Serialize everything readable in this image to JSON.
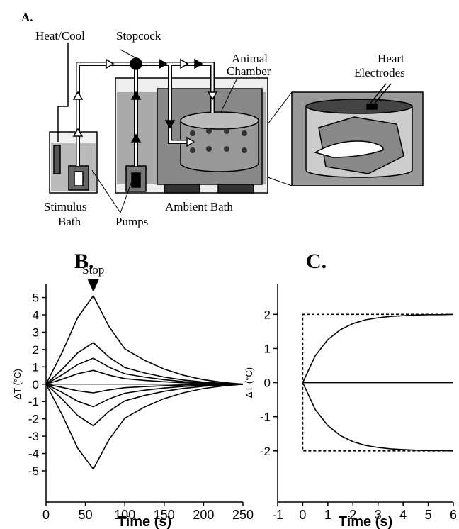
{
  "panel_a": {
    "label": "A.",
    "heat_cool": "Heat/Cool",
    "stopcock": "Stopcock",
    "animal_chamber": [
      "Animal",
      "Chamber"
    ],
    "heart_electrodes": [
      "Heart",
      "Electrodes"
    ],
    "stimulus_bath": [
      "Stimulus",
      "Bath"
    ],
    "pumps": "Pumps",
    "ambient_bath": "Ambient Bath"
  },
  "chart_data": [
    {
      "type": "line",
      "panel_label": "B.",
      "x_label": "Time (s)",
      "y_label": "ΔT (°C)",
      "x": [
        0,
        20,
        40,
        60,
        80,
        100,
        125,
        150,
        175,
        200,
        225,
        250
      ],
      "series": [
        {
          "color": "#000",
          "values": [
            0,
            1.79,
            3.83,
            5.1,
            3.32,
            2.04,
            1.38,
            0.87,
            0.51,
            0.26,
            0.1,
            0
          ]
        },
        {
          "color": "#000",
          "values": [
            0,
            0.84,
            1.8,
            2.4,
            1.56,
            0.96,
            0.65,
            0.41,
            0.24,
            0.12,
            0.05,
            0
          ]
        },
        {
          "color": "#000",
          "values": [
            0,
            0.53,
            1.13,
            1.5,
            0.98,
            0.6,
            0.41,
            0.26,
            0.15,
            0.08,
            0.03,
            0
          ]
        },
        {
          "color": "#000",
          "values": [
            0,
            0.28,
            0.6,
            0.8,
            0.52,
            0.32,
            0.22,
            0.14,
            0.08,
            0.04,
            0.02,
            0
          ]
        },
        {
          "color": "#000",
          "values": [
            0,
            -0.18,
            -0.38,
            -0.5,
            -0.33,
            -0.2,
            -0.14,
            -0.09,
            -0.05,
            -0.03,
            -0.01,
            0
          ]
        },
        {
          "color": "#000",
          "values": [
            0,
            -0.46,
            -0.98,
            -1.3,
            -0.85,
            -0.52,
            -0.35,
            -0.22,
            -0.13,
            -0.07,
            -0.03,
            0
          ]
        },
        {
          "color": "#000",
          "values": [
            0,
            -0.84,
            -1.8,
            -2.4,
            -1.56,
            -0.96,
            -0.65,
            -0.41,
            -0.24,
            -0.12,
            -0.05,
            0
          ]
        },
        {
          "color": "#000",
          "values": [
            0,
            -1.72,
            -3.68,
            -4.9,
            -3.19,
            -1.96,
            -1.32,
            -0.83,
            -0.49,
            -0.25,
            -0.1,
            0
          ]
        }
      ],
      "annotation": {
        "text": "Stop",
        "x": 60
      },
      "zero_line": true,
      "xlim": [
        0,
        250
      ],
      "xticks": [
        0,
        50,
        100,
        150,
        200,
        250
      ],
      "ylim": [
        -6.8,
        5.8
      ],
      "yticks": [
        -5,
        -4,
        -3,
        -2,
        -1,
        0,
        1,
        2,
        3,
        4,
        5
      ]
    },
    {
      "type": "line",
      "panel_label": "C.",
      "x_label": "Time (s)",
      "y_label": "ΔT (°C)",
      "series": [
        {
          "color": "#000",
          "x": [
            0,
            0.5,
            1,
            1.5,
            2,
            2.5,
            3,
            3.5,
            4,
            4.5,
            5,
            5.5,
            6
          ],
          "values": [
            0,
            0.79,
            1.26,
            1.55,
            1.73,
            1.84,
            1.9,
            1.94,
            1.96,
            1.98,
            1.99,
            1.99,
            2
          ]
        },
        {
          "color": "#000",
          "x": [
            0,
            0.5,
            1,
            1.5,
            2,
            2.5,
            3,
            3.5,
            4,
            4.5,
            5,
            5.5,
            6
          ],
          "values": [
            0,
            -0.79,
            -1.26,
            -1.55,
            -1.73,
            -1.84,
            -1.9,
            -1.94,
            -1.96,
            -1.98,
            -1.99,
            -1.99,
            -2
          ]
        },
        {
          "color": "#000",
          "x": [
            0,
            6
          ],
          "values": [
            0,
            0
          ]
        },
        {
          "color": "#000",
          "dashed": true,
          "x": [
            6,
            0,
            0,
            6
          ],
          "values": [
            2,
            2,
            -2,
            -2
          ]
        }
      ],
      "xlim": [
        -1,
        6
      ],
      "xticks": [
        -1,
        0,
        1,
        2,
        3,
        4,
        5,
        6
      ],
      "ylim": [
        -3.5,
        2.9
      ],
      "yticks": [
        -2,
        -1,
        0,
        1,
        2
      ]
    }
  ]
}
